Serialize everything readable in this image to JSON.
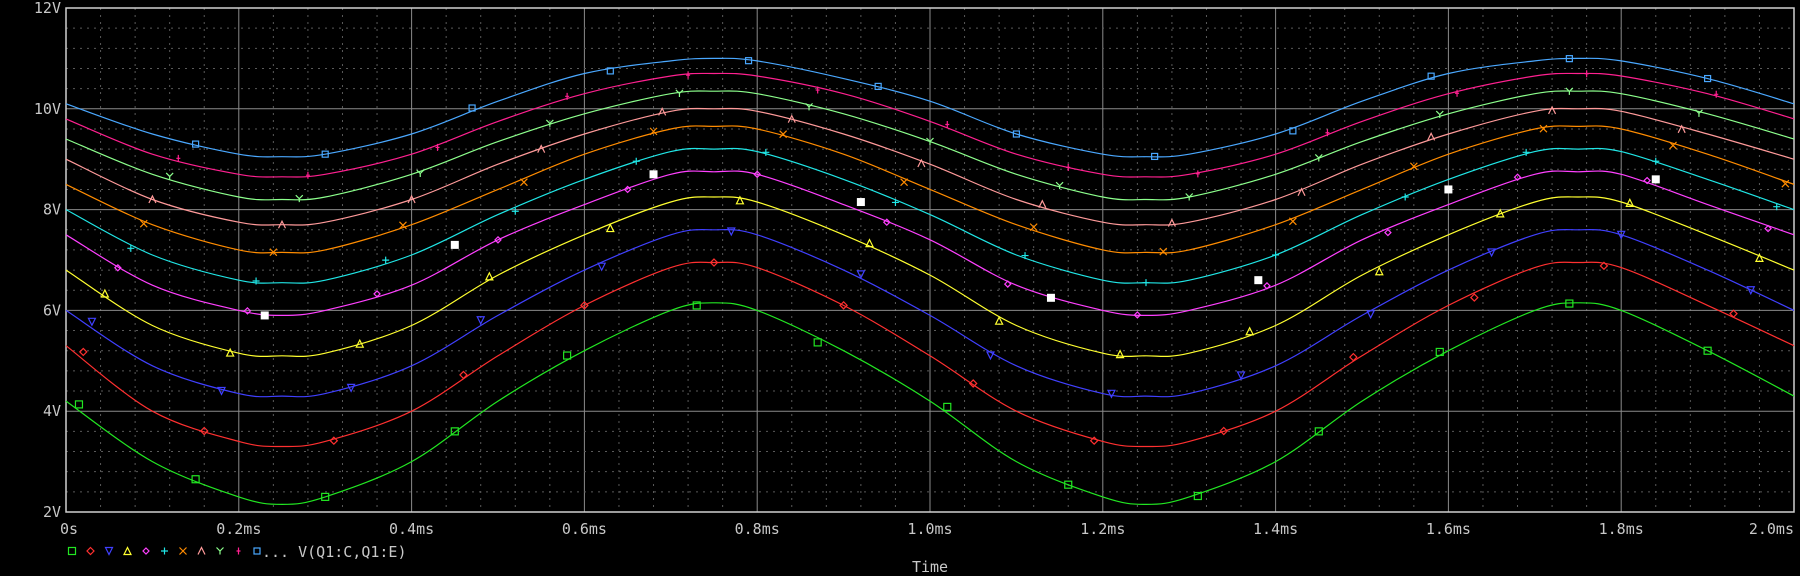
{
  "chart_data": {
    "type": "line",
    "xlabel": "Time",
    "ylabel": "",
    "xlim": [
      0,
      2.0
    ],
    "ylim": [
      2,
      12
    ],
    "x_ticks": [
      {
        "value": 0,
        "label": "0s"
      },
      {
        "value": 0.2,
        "label": "0.2ms"
      },
      {
        "value": 0.4,
        "label": "0.4ms"
      },
      {
        "value": 0.6,
        "label": "0.6ms"
      },
      {
        "value": 0.8,
        "label": "0.8ms"
      },
      {
        "value": 1.0,
        "label": "1.0ms"
      },
      {
        "value": 1.2,
        "label": "1.2ms"
      },
      {
        "value": 1.4,
        "label": "1.4ms"
      },
      {
        "value": 1.6,
        "label": "1.6ms"
      },
      {
        "value": 1.8,
        "label": "1.8ms"
      },
      {
        "value": 2.0,
        "label": "2.0ms"
      }
    ],
    "y_ticks": [
      {
        "value": 2,
        "label": "2V"
      },
      {
        "value": 4,
        "label": "4V"
      },
      {
        "value": 6,
        "label": "6V"
      },
      {
        "value": 8,
        "label": "8V"
      },
      {
        "value": 10,
        "label": "10V"
      },
      {
        "value": 12,
        "label": "12V"
      }
    ],
    "grid": true,
    "legend_text": "... V(Q1:C,Q1:E)",
    "legend_placement": "bottom-left",
    "x": [
      0,
      0.1,
      0.2,
      0.25,
      0.3,
      0.4,
      0.5,
      0.6,
      0.7,
      0.75,
      0.8,
      0.9,
      1.0,
      1.1,
      1.2,
      1.25,
      1.3,
      1.4,
      1.5,
      1.6,
      1.7,
      1.75,
      1.8,
      1.9,
      2.0
    ],
    "series": [
      {
        "marker": "square",
        "color": "#22e622",
        "values": [
          4.2,
          3.0,
          2.3,
          2.15,
          2.3,
          3.0,
          4.2,
          5.2,
          6.0,
          6.15,
          6.0,
          5.2,
          4.2,
          3.0,
          2.3,
          2.15,
          2.3,
          3.0,
          4.2,
          5.2,
          6.0,
          6.15,
          6.0,
          5.2,
          4.3
        ]
      },
      {
        "marker": "diamond",
        "color": "#ff3030",
        "values": [
          5.3,
          4.0,
          3.4,
          3.3,
          3.4,
          4.0,
          5.1,
          6.1,
          6.85,
          6.95,
          6.85,
          6.1,
          5.1,
          4.0,
          3.4,
          3.3,
          3.4,
          4.0,
          5.1,
          6.1,
          6.85,
          6.95,
          6.85,
          6.1,
          5.3
        ]
      },
      {
        "marker": "triangle-down",
        "color": "#4040ff",
        "values": [
          6.0,
          4.9,
          4.35,
          4.3,
          4.35,
          4.9,
          5.9,
          6.8,
          7.5,
          7.6,
          7.5,
          6.8,
          5.9,
          4.9,
          4.35,
          4.3,
          4.35,
          4.9,
          5.9,
          6.8,
          7.5,
          7.6,
          7.5,
          6.8,
          6.0
        ]
      },
      {
        "marker": "triangle-up",
        "color": "#ffff30",
        "values": [
          6.8,
          5.7,
          5.15,
          5.1,
          5.15,
          5.7,
          6.7,
          7.5,
          8.15,
          8.25,
          8.15,
          7.5,
          6.7,
          5.7,
          5.15,
          5.1,
          5.15,
          5.7,
          6.7,
          7.5,
          8.15,
          8.25,
          8.15,
          7.5,
          6.8
        ]
      },
      {
        "marker": "diamond-small",
        "color": "#ff40ff",
        "values": [
          7.5,
          6.5,
          6.0,
          5.9,
          6.0,
          6.5,
          7.4,
          8.1,
          8.7,
          8.75,
          8.7,
          8.1,
          7.4,
          6.5,
          6.0,
          5.9,
          6.0,
          6.5,
          7.4,
          8.1,
          8.7,
          8.75,
          8.7,
          8.1,
          7.5
        ]
      },
      {
        "marker": "plus",
        "color": "#20e6e6",
        "values": [
          8.0,
          7.1,
          6.6,
          6.55,
          6.6,
          7.1,
          7.9,
          8.6,
          9.15,
          9.2,
          9.15,
          8.6,
          7.9,
          7.1,
          6.6,
          6.55,
          6.6,
          7.1,
          7.9,
          8.6,
          9.15,
          9.2,
          9.15,
          8.6,
          8.0
        ]
      },
      {
        "marker": "x",
        "color": "#ff8c00",
        "values": [
          8.5,
          7.7,
          7.2,
          7.15,
          7.2,
          7.7,
          8.4,
          9.1,
          9.6,
          9.65,
          9.6,
          9.1,
          8.4,
          7.7,
          7.2,
          7.15,
          7.2,
          7.7,
          8.4,
          9.1,
          9.6,
          9.65,
          9.6,
          9.1,
          8.5
        ]
      },
      {
        "marker": "lambda",
        "color": "#ff9a9a",
        "values": [
          9.0,
          8.2,
          7.75,
          7.7,
          7.75,
          8.2,
          8.9,
          9.5,
          9.95,
          10.0,
          9.95,
          9.5,
          8.9,
          8.2,
          7.75,
          7.7,
          7.75,
          8.2,
          8.9,
          9.5,
          9.95,
          10.0,
          9.95,
          9.5,
          9.0
        ]
      },
      {
        "marker": "y",
        "color": "#8cff8c",
        "values": [
          9.4,
          8.7,
          8.25,
          8.2,
          8.25,
          8.7,
          9.35,
          9.9,
          10.3,
          10.35,
          10.3,
          9.9,
          9.35,
          8.7,
          8.25,
          8.2,
          8.25,
          8.7,
          9.35,
          9.9,
          10.3,
          10.35,
          10.3,
          9.9,
          9.4
        ]
      },
      {
        "marker": "bar",
        "color": "#ff2090",
        "values": [
          9.8,
          9.1,
          8.7,
          8.65,
          8.7,
          9.1,
          9.75,
          10.3,
          10.65,
          10.7,
          10.65,
          10.3,
          9.75,
          9.1,
          8.7,
          8.65,
          8.7,
          9.1,
          9.75,
          10.3,
          10.65,
          10.7,
          10.65,
          10.3,
          9.8
        ]
      },
      {
        "marker": "square-small",
        "color": "#4aa8ff",
        "values": [
          10.1,
          9.5,
          9.1,
          9.05,
          9.1,
          9.5,
          10.15,
          10.7,
          10.95,
          11.0,
          10.95,
          10.6,
          10.15,
          9.5,
          9.1,
          9.05,
          9.1,
          9.5,
          10.15,
          10.7,
          10.95,
          11.0,
          10.95,
          10.6,
          10.1
        ]
      }
    ],
    "marker_points": [
      {
        "series": 0,
        "x": [
          0.015,
          0.15,
          0.3,
          0.45,
          0.58,
          0.73,
          0.87,
          1.02,
          1.16,
          1.31,
          1.45,
          1.59,
          1.74,
          1.9
        ]
      },
      {
        "series": 1,
        "x": [
          0.02,
          0.16,
          0.31,
          0.46,
          0.6,
          0.75,
          0.9,
          1.05,
          1.19,
          1.34,
          1.49,
          1.63,
          1.78,
          1.93
        ]
      },
      {
        "series": 2,
        "x": [
          0.03,
          0.18,
          0.33,
          0.48,
          0.62,
          0.77,
          0.92,
          1.07,
          1.21,
          1.36,
          1.51,
          1.65,
          1.8,
          1.95
        ]
      },
      {
        "series": 3,
        "x": [
          0.045,
          0.19,
          0.34,
          0.49,
          0.63,
          0.78,
          0.93,
          1.08,
          1.22,
          1.37,
          1.52,
          1.66,
          1.81,
          1.96
        ]
      },
      {
        "series": 4,
        "x": [
          0.06,
          0.21,
          0.36,
          0.5,
          0.65,
          0.8,
          0.95,
          1.09,
          1.24,
          1.39,
          1.53,
          1.68,
          1.83,
          1.97
        ]
      },
      {
        "series": 5,
        "x": [
          0.075,
          0.22,
          0.37,
          0.52,
          0.66,
          0.81,
          0.96,
          1.11,
          1.25,
          1.4,
          1.55,
          1.69,
          1.84,
          1.98
        ]
      },
      {
        "series": 6,
        "x": [
          0.09,
          0.24,
          0.39,
          0.53,
          0.68,
          0.83,
          0.97,
          1.12,
          1.27,
          1.42,
          1.56,
          1.71,
          1.86,
          1.99
        ]
      },
      {
        "series": 7,
        "x": [
          0.1,
          0.25,
          0.4,
          0.55,
          0.69,
          0.84,
          0.99,
          1.13,
          1.28,
          1.43,
          1.58,
          1.72,
          1.87
        ]
      },
      {
        "series": 8,
        "x": [
          0.12,
          0.27,
          0.41,
          0.56,
          0.71,
          0.86,
          1.0,
          1.15,
          1.3,
          1.45,
          1.59,
          1.74,
          1.89
        ]
      },
      {
        "series": 9,
        "x": [
          0.13,
          0.28,
          0.43,
          0.58,
          0.72,
          0.87,
          1.02,
          1.16,
          1.31,
          1.46,
          1.61,
          1.76,
          1.91
        ]
      },
      {
        "series": 10,
        "x": [
          0.15,
          0.3,
          0.47,
          0.63,
          0.79,
          0.94,
          1.1,
          1.26,
          1.42,
          1.58,
          1.74,
          1.9
        ]
      }
    ],
    "cursor_markers": [
      {
        "x": 0.23,
        "y": 5.9
      },
      {
        "x": 0.45,
        "y": 7.3
      },
      {
        "x": 0.68,
        "y": 8.7
      },
      {
        "x": 0.92,
        "y": 8.15
      },
      {
        "x": 1.14,
        "y": 6.25
      },
      {
        "x": 1.38,
        "y": 6.6
      },
      {
        "x": 1.6,
        "y": 8.4
      },
      {
        "x": 1.84,
        "y": 8.6
      }
    ]
  }
}
